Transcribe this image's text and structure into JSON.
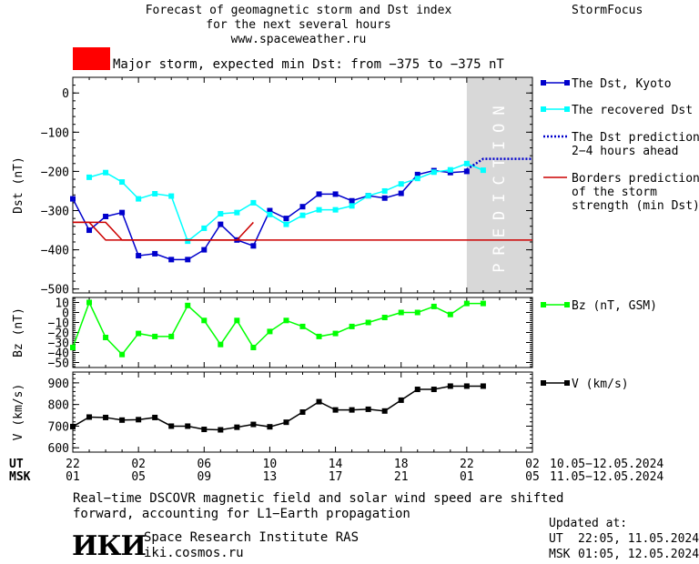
{
  "header": {
    "title_line1": "Forecast of geomagnetic storm and Dst index",
    "title_line2": "for the next several hours",
    "site": "www.spaceweather.ru",
    "brand": "StormFocus"
  },
  "alert": {
    "color": "#ff0000",
    "text": "Major storm, expected min Dst: from −375 to −375 nT"
  },
  "prediction_label": "PREDICTION",
  "time_axis": {
    "ut_label": "UT",
    "msk_label": "MSK",
    "ut_ticks": [
      "22",
      "02",
      "06",
      "10",
      "14",
      "18",
      "22",
      "02"
    ],
    "msk_ticks": [
      "01",
      "05",
      "09",
      "13",
      "17",
      "21",
      "01",
      "05"
    ],
    "ut_range": "10.05−12.05.2024",
    "msk_range": "11.05−12.05.2024"
  },
  "footer": {
    "note_line1": "Real−time DSCOVR magnetic field and solar wind speed are shifted",
    "note_line2": "forward, accounting for L1−Earth propagation",
    "logo_text": "ИКИ",
    "institute": "Space Research Institute RAS",
    "institute_url": "iki.cosmos.ru",
    "updated_label": "Updated at:",
    "updated_ut_label": "UT",
    "updated_ut": "22:05, 11.05.2024",
    "updated_msk_label": "MSK",
    "updated_msk": "01:05, 12.05.2024"
  },
  "chart_data": [
    {
      "type": "line",
      "panel": "dst",
      "ylabel": "Dst (nT)",
      "ylim": [
        -510,
        40
      ],
      "yticks": [
        0,
        -100,
        -200,
        -300,
        -400,
        -500
      ],
      "ytick_labels": [
        "0",
        "−100",
        "−200",
        "−300",
        "−400",
        "−500"
      ],
      "xlim": [
        0,
        28
      ],
      "x_unit": "hours from 22 UT 10.05.2024",
      "prediction_region": [
        24,
        28
      ],
      "series": [
        {
          "name": "The Dst, Kyoto",
          "color": "#0000cc",
          "marker": "square",
          "line_style": "solid",
          "x": [
            0,
            1,
            2,
            3,
            4,
            5,
            6,
            7,
            8,
            9,
            10,
            11,
            12,
            13,
            14,
            15,
            16,
            17,
            18,
            19,
            20,
            21,
            22,
            23,
            24
          ],
          "y": [
            -270,
            -350,
            -315,
            -305,
            -415,
            -410,
            -425,
            -425,
            -400,
            -335,
            -375,
            -390,
            -300,
            -320,
            -290,
            -258,
            -258,
            -275,
            -262,
            -268,
            -256,
            -208,
            -198,
            -203,
            -200
          ]
        },
        {
          "name": "The recovered Dst",
          "color": "#00ffff",
          "marker": "square",
          "line_style": "solid",
          "x": [
            1,
            2,
            3,
            4,
            5,
            6,
            7,
            8,
            9,
            10,
            11,
            12,
            13,
            14,
            15,
            16,
            17,
            18,
            19,
            20,
            21,
            22,
            23,
            24,
            25
          ],
          "y": [
            -215,
            -203,
            -227,
            -270,
            -257,
            -263,
            -378,
            -345,
            -308,
            -305,
            -280,
            -310,
            -335,
            -312,
            -298,
            -298,
            -288,
            -262,
            -250,
            -232,
            -218,
            -202,
            -196,
            -180,
            -197
          ]
        },
        {
          "name": "The Dst prediction\n2−4 hours ahead",
          "color": "#0000cc",
          "marker": "none",
          "line_style": "dotted",
          "x": [
            24,
            25,
            26,
            27,
            28
          ],
          "y": [
            -195,
            -168,
            -168,
            -168,
            -168
          ]
        },
        {
          "name": "Borders prediction\nof the storm\nstrength (min Dst)",
          "color": "#cc0000",
          "marker": "none",
          "line_style": "solid",
          "x": [
            0,
            2,
            3,
            10,
            11
          ],
          "y": [
            -330,
            -330,
            -375,
            -375,
            -330
          ]
        },
        {
          "name": "",
          "color": "#cc0000",
          "marker": "none",
          "line_style": "solid",
          "x": [
            0,
            1,
            2,
            10.5,
            11,
            28
          ],
          "y": [
            -330,
            -330,
            -375,
            -375,
            -375,
            -375
          ]
        }
      ]
    },
    {
      "type": "line",
      "panel": "bz",
      "ylabel": "Bz (nT)",
      "ylim": [
        -55,
        15
      ],
      "yticks": [
        10,
        0,
        -10,
        -20,
        -30,
        -40,
        -50
      ],
      "ytick_labels": [
        "10",
        "0",
        "−10",
        "−20",
        "−30",
        "−40",
        "−50"
      ],
      "xlim": [
        0,
        28
      ],
      "series": [
        {
          "name": "Bz (nT, GSM)",
          "color": "#00ff00",
          "marker": "square",
          "line_style": "solid",
          "x": [
            0,
            1,
            2,
            3,
            4,
            5,
            6,
            7,
            8,
            9,
            10,
            11,
            12,
            13,
            14,
            15,
            16,
            17,
            18,
            19,
            20,
            21,
            22,
            23,
            24,
            25
          ],
          "y": [
            -35,
            10,
            -25,
            -42,
            -21,
            -24,
            -24,
            7,
            -8,
            -32,
            -8,
            -35,
            -19,
            -8,
            -14,
            -24,
            -21,
            -14,
            -10,
            -5,
            0,
            0,
            6,
            -2,
            9,
            9
          ]
        }
      ]
    },
    {
      "type": "line",
      "panel": "speed",
      "ylabel": "V (km/s)",
      "ylim": [
        580,
        950
      ],
      "yticks": [
        900,
        800,
        700,
        600
      ],
      "ytick_labels": [
        "900",
        "800",
        "700",
        "600"
      ],
      "xlim": [
        0,
        28
      ],
      "series": [
        {
          "name": "V (km/s)",
          "color": "#000000",
          "marker": "square",
          "line_style": "solid",
          "x": [
            0,
            1,
            2,
            3,
            4,
            5,
            6,
            7,
            8,
            9,
            10,
            11,
            12,
            13,
            14,
            15,
            16,
            17,
            18,
            19,
            20,
            21,
            22,
            23,
            24,
            25
          ],
          "y": [
            698,
            742,
            740,
            728,
            730,
            740,
            700,
            700,
            685,
            683,
            695,
            708,
            697,
            718,
            765,
            813,
            775,
            775,
            778,
            770,
            820,
            870,
            870,
            885,
            885,
            885
          ]
        }
      ]
    }
  ]
}
